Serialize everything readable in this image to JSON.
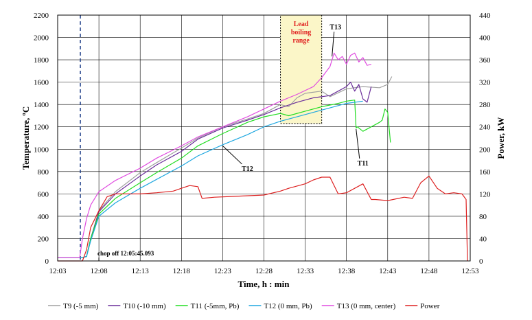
{
  "chart_data": {
    "type": "line",
    "title": "",
    "xlabel": "Time, h : min",
    "ylabel_left": "Temperature, ºC",
    "ylabel_right": "Power,  kW",
    "x_ticks": [
      "12:03",
      "12:08",
      "12:13",
      "12:18",
      "12:23",
      "12:28",
      "12:33",
      "12:38",
      "12:43",
      "12:48",
      "12:53"
    ],
    "x_range": [
      "12:03",
      "12:53"
    ],
    "y_left_ticks": [
      0,
      200,
      400,
      600,
      800,
      1000,
      1200,
      1400,
      1600,
      1800,
      2000,
      2200
    ],
    "y_left_range": [
      0,
      2200
    ],
    "y_right_ticks": [
      0,
      40,
      80,
      120,
      160,
      200,
      240,
      280,
      320,
      360,
      400,
      440
    ],
    "y_right_range": [
      0,
      440
    ],
    "grid": true,
    "legend_position": "bottom",
    "annotations": {
      "lead_boiling": [
        "Lead",
        "boiling",
        "range"
      ],
      "lead_boiling_range_x": [
        "12:30",
        "12:35"
      ],
      "lead_boiling_range_y": [
        1230,
        2200
      ],
      "chop_off": "chop off 12:05:45.093",
      "chop_off_time": "12:05:45",
      "t13_label": "T13",
      "t11_label": "T11",
      "t12_label": "T12"
    },
    "series": [
      {
        "name": "T9 (-5 mm)",
        "color": "#a0a0a0",
        "axis": "left",
        "x": [
          "12:03",
          "12:05",
          "12:06",
          "12:06:30",
          "12:07",
          "12:08",
          "12:10",
          "12:13",
          "12:15",
          "12:18",
          "12:20",
          "12:23",
          "12:26",
          "12:28",
          "12:30",
          "12:31",
          "12:32",
          "12:33",
          "12:35",
          "12:36",
          "12:38",
          "12:40",
          "12:42",
          "12:43",
          "12:43:30"
        ],
        "y": [
          30,
          30,
          30,
          40,
          200,
          450,
          620,
          790,
          880,
          1010,
          1100,
          1200,
          1270,
          1320,
          1400,
          1380,
          1460,
          1500,
          1520,
          1470,
          1540,
          1560,
          1550,
          1580,
          1650
        ]
      },
      {
        "name": "T10 (-10 mm)",
        "color": "#6a2d9a",
        "axis": "left",
        "x": [
          "12:03",
          "12:06",
          "12:06:30",
          "12:07",
          "12:08",
          "12:10",
          "12:13",
          "12:15",
          "12:18",
          "12:20",
          "12:23",
          "12:26",
          "12:28",
          "12:30",
          "12:32",
          "12:34",
          "12:36",
          "12:37",
          "12:38",
          "12:38:30",
          "12:39",
          "12:39:30",
          "12:40",
          "12:40:30",
          "12:41"
        ],
        "y": [
          30,
          30,
          40,
          200,
          440,
          600,
          760,
          860,
          980,
          1090,
          1190,
          1260,
          1310,
          1370,
          1420,
          1460,
          1480,
          1520,
          1560,
          1600,
          1520,
          1580,
          1450,
          1420,
          1560
        ]
      },
      {
        "name": "T11 (-5mm, Pb)",
        "color": "#22dd22",
        "axis": "left",
        "x": [
          "12:03",
          "12:06",
          "12:06:30",
          "12:07",
          "12:08",
          "12:10",
          "12:13",
          "12:15",
          "12:18",
          "12:20",
          "12:23",
          "12:26",
          "12:28",
          "12:30",
          "12:31",
          "12:33",
          "12:35",
          "12:37",
          "12:38",
          "12:39",
          "12:39:10",
          "12:39:20",
          "12:40",
          "12:41",
          "12:42",
          "12:42:20",
          "12:42:40",
          "12:43",
          "12:43:20"
        ],
        "y": [
          30,
          30,
          40,
          200,
          420,
          560,
          700,
          790,
          920,
          1030,
          1140,
          1240,
          1290,
          1320,
          1300,
          1340,
          1380,
          1410,
          1430,
          1440,
          1190,
          1200,
          1160,
          1200,
          1240,
          1260,
          1360,
          1330,
          1060
        ]
      },
      {
        "name": "T12 (0 mm, Pb)",
        "color": "#1ea7e0",
        "axis": "left",
        "x": [
          "12:03",
          "12:06",
          "12:06:30",
          "12:07",
          "12:08",
          "12:10",
          "12:13",
          "12:15",
          "12:18",
          "12:20",
          "12:23",
          "12:26",
          "12:28",
          "12:30",
          "12:32",
          "12:34",
          "12:36",
          "12:38",
          "12:40"
        ],
        "y": [
          30,
          30,
          40,
          180,
          400,
          520,
          650,
          730,
          850,
          940,
          1040,
          1130,
          1200,
          1250,
          1290,
          1330,
          1370,
          1410,
          1430
        ]
      },
      {
        "name": "T13 (0 mm, center)",
        "color": "#e04ce0",
        "axis": "left",
        "x": [
          "12:03",
          "12:05:40",
          "12:06",
          "12:06:30",
          "12:07",
          "12:08",
          "12:10",
          "12:13",
          "12:15",
          "12:18",
          "12:20",
          "12:23",
          "12:26",
          "12:28",
          "12:30",
          "12:32",
          "12:34",
          "12:35",
          "12:36",
          "12:36:30",
          "12:37",
          "12:37:30",
          "12:38",
          "12:38:30",
          "12:39",
          "12:39:30",
          "12:40",
          "12:40:30",
          "12:41"
        ],
        "y": [
          30,
          30,
          200,
          380,
          500,
          620,
          720,
          830,
          920,
          1030,
          1110,
          1200,
          1290,
          1360,
          1430,
          1490,
          1560,
          1640,
          1740,
          1860,
          1800,
          1830,
          1760,
          1840,
          1860,
          1780,
          1820,
          1750,
          1760
        ]
      },
      {
        "name": "Power",
        "color": "#dd2020",
        "axis": "right",
        "x": [
          "12:03",
          "12:06",
          "12:06:30",
          "12:07",
          "12:08",
          "12:09",
          "12:10",
          "12:13",
          "12:15",
          "12:17",
          "12:18",
          "12:19",
          "12:20",
          "12:20:30",
          "12:22",
          "12:25",
          "12:28",
          "12:30",
          "12:31",
          "12:33",
          "12:34",
          "12:35",
          "12:36",
          "12:37",
          "12:38",
          "12:40",
          "12:41",
          "12:41:30",
          "12:43",
          "12:45",
          "12:46",
          "12:47",
          "12:48",
          "12:49",
          "12:50",
          "12:51",
          "12:52",
          "12:52:30",
          "12:52:40"
        ],
        "y": [
          0,
          0,
          20,
          60,
          90,
          115,
          120,
          120,
          122,
          125,
          130,
          135,
          133,
          112,
          114,
          116,
          118,
          125,
          130,
          138,
          145,
          150,
          150,
          120,
          122,
          138,
          110,
          110,
          108,
          114,
          112,
          140,
          152,
          130,
          120,
          122,
          120,
          110,
          0
        ]
      }
    ]
  }
}
